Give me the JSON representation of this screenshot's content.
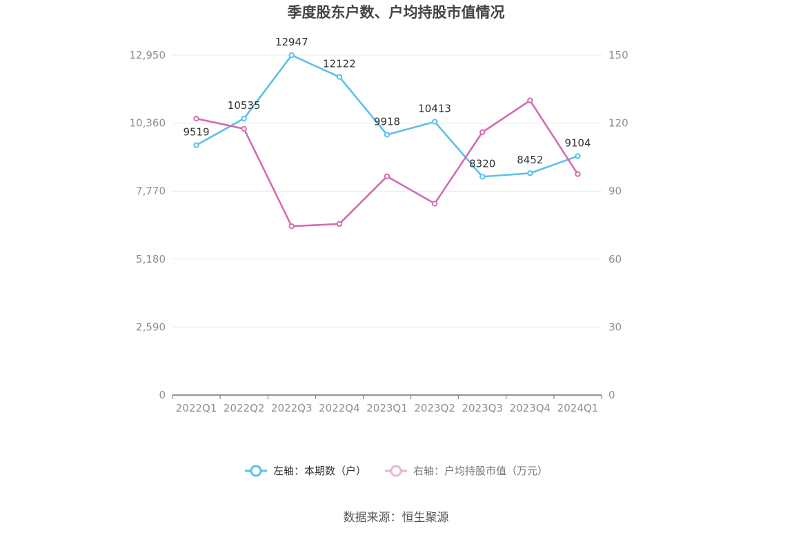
{
  "chart_data": {
    "type": "line",
    "title": "季度股东户数、户均持股市值情况",
    "categories": [
      "2022Q1",
      "2022Q2",
      "2022Q3",
      "2022Q4",
      "2023Q1",
      "2023Q2",
      "2023Q3",
      "2023Q4",
      "2024Q1"
    ],
    "left_axis": {
      "ticks": [
        "0",
        "2,590",
        "5,180",
        "7,770",
        "10,360",
        "12,950"
      ],
      "range": [
        0,
        12950
      ]
    },
    "right_axis": {
      "ticks": [
        "0",
        "30",
        "60",
        "90",
        "120",
        "150"
      ],
      "range": [
        0,
        150
      ]
    },
    "series": [
      {
        "name": "左轴：本期数（户）",
        "axis": "left",
        "color": "#5bc0eb",
        "values": [
          9519,
          10535,
          12947,
          12122,
          9918,
          10413,
          8320,
          8452,
          9104
        ],
        "labels": [
          "9519",
          "10535",
          "12947",
          "12122",
          "9918",
          "10413",
          "8320",
          "8452",
          "9104"
        ]
      },
      {
        "name": "右轴：户均持股市值（万元）",
        "axis": "right",
        "color": "#d46bb3",
        "values": [
          122.0,
          117.5,
          74.5,
          75.5,
          96.5,
          84.5,
          116.0,
          130.0,
          97.5
        ]
      }
    ],
    "grid": true,
    "legend_position": "bottom"
  },
  "source": "数据来源：恒生聚源"
}
